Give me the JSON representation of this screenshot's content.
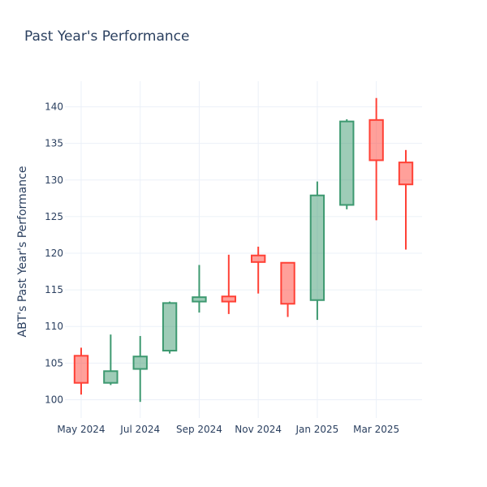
{
  "chart_data": {
    "type": "candlestick",
    "title": "Past Year's Performance",
    "xlabel": "",
    "ylabel": "ABT's Past Year's Performance",
    "ylim": [
      97.5,
      143.5
    ],
    "y_ticks": [
      100,
      105,
      110,
      115,
      120,
      125,
      130,
      135,
      140
    ],
    "x_ticks": [
      {
        "label": "May 2024",
        "month_index": 0
      },
      {
        "label": "Jul 2024",
        "month_index": 2
      },
      {
        "label": "Sep 2024",
        "month_index": 4
      },
      {
        "label": "Nov 2024",
        "month_index": 6
      },
      {
        "label": "Jan 2025",
        "month_index": 8
      },
      {
        "label": "Mar 2025",
        "month_index": 10
      }
    ],
    "xlim": [
      -0.55,
      11.55
    ],
    "colors": {
      "increasing": "#3d9970",
      "decreasing": "#ff4136"
    },
    "candles": [
      {
        "month": "May 2024",
        "open": 106.0,
        "high": 107.1,
        "low": 100.7,
        "close": 102.3
      },
      {
        "month": "Jun 2024",
        "open": 102.3,
        "high": 108.9,
        "low": 102.0,
        "close": 103.9
      },
      {
        "month": "Jul 2024",
        "open": 104.2,
        "high": 108.7,
        "low": 99.7,
        "close": 105.9
      },
      {
        "month": "Aug 2024",
        "open": 106.7,
        "high": 113.4,
        "low": 106.3,
        "close": 113.2
      },
      {
        "month": "Sep 2024",
        "open": 113.4,
        "high": 118.4,
        "low": 111.9,
        "close": 114.0
      },
      {
        "month": "Oct 2024",
        "open": 114.1,
        "high": 119.8,
        "low": 111.7,
        "close": 113.4
      },
      {
        "month": "Nov 2024",
        "open": 119.7,
        "high": 120.9,
        "low": 114.5,
        "close": 118.8
      },
      {
        "month": "Dec 2024",
        "open": 118.7,
        "high": 118.7,
        "low": 111.3,
        "close": 113.1
      },
      {
        "month": "Jan 2025",
        "open": 113.6,
        "high": 129.8,
        "low": 110.9,
        "close": 127.9
      },
      {
        "month": "Feb 2025",
        "open": 126.6,
        "high": 138.3,
        "low": 126.0,
        "close": 138.0
      },
      {
        "month": "Mar 2025",
        "open": 138.2,
        "high": 141.2,
        "low": 124.5,
        "close": 132.7
      },
      {
        "month": "Apr 2025",
        "open": 132.4,
        "high": 134.1,
        "low": 120.5,
        "close": 129.4
      }
    ]
  }
}
